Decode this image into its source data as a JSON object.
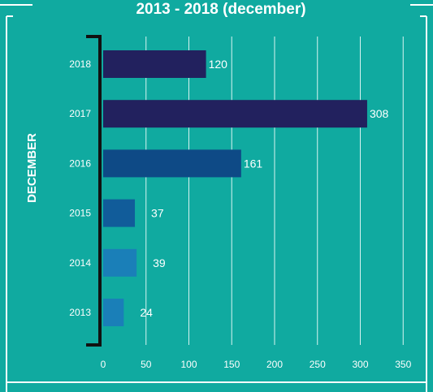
{
  "chart_data": {
    "type": "bar",
    "orientation": "horizontal",
    "title": "2013 - 2018 (december)",
    "ylabel": "DECEMBER",
    "xlabel": "",
    "categories": [
      "2018",
      "2017",
      "2016",
      "2015",
      "2014",
      "2013"
    ],
    "values": [
      120,
      308,
      161,
      37,
      39,
      24
    ],
    "xlim": [
      0,
      350
    ],
    "xticks": [
      0,
      50,
      100,
      150,
      200,
      250,
      300,
      350
    ],
    "grid": "vertical",
    "legend": "none",
    "bar_colors": [
      "#22215e",
      "#22215e",
      "#0e4a86",
      "#115c9a",
      "#1a7fb8",
      "#1a7fb8"
    ],
    "background_color": "#10aaa0"
  }
}
